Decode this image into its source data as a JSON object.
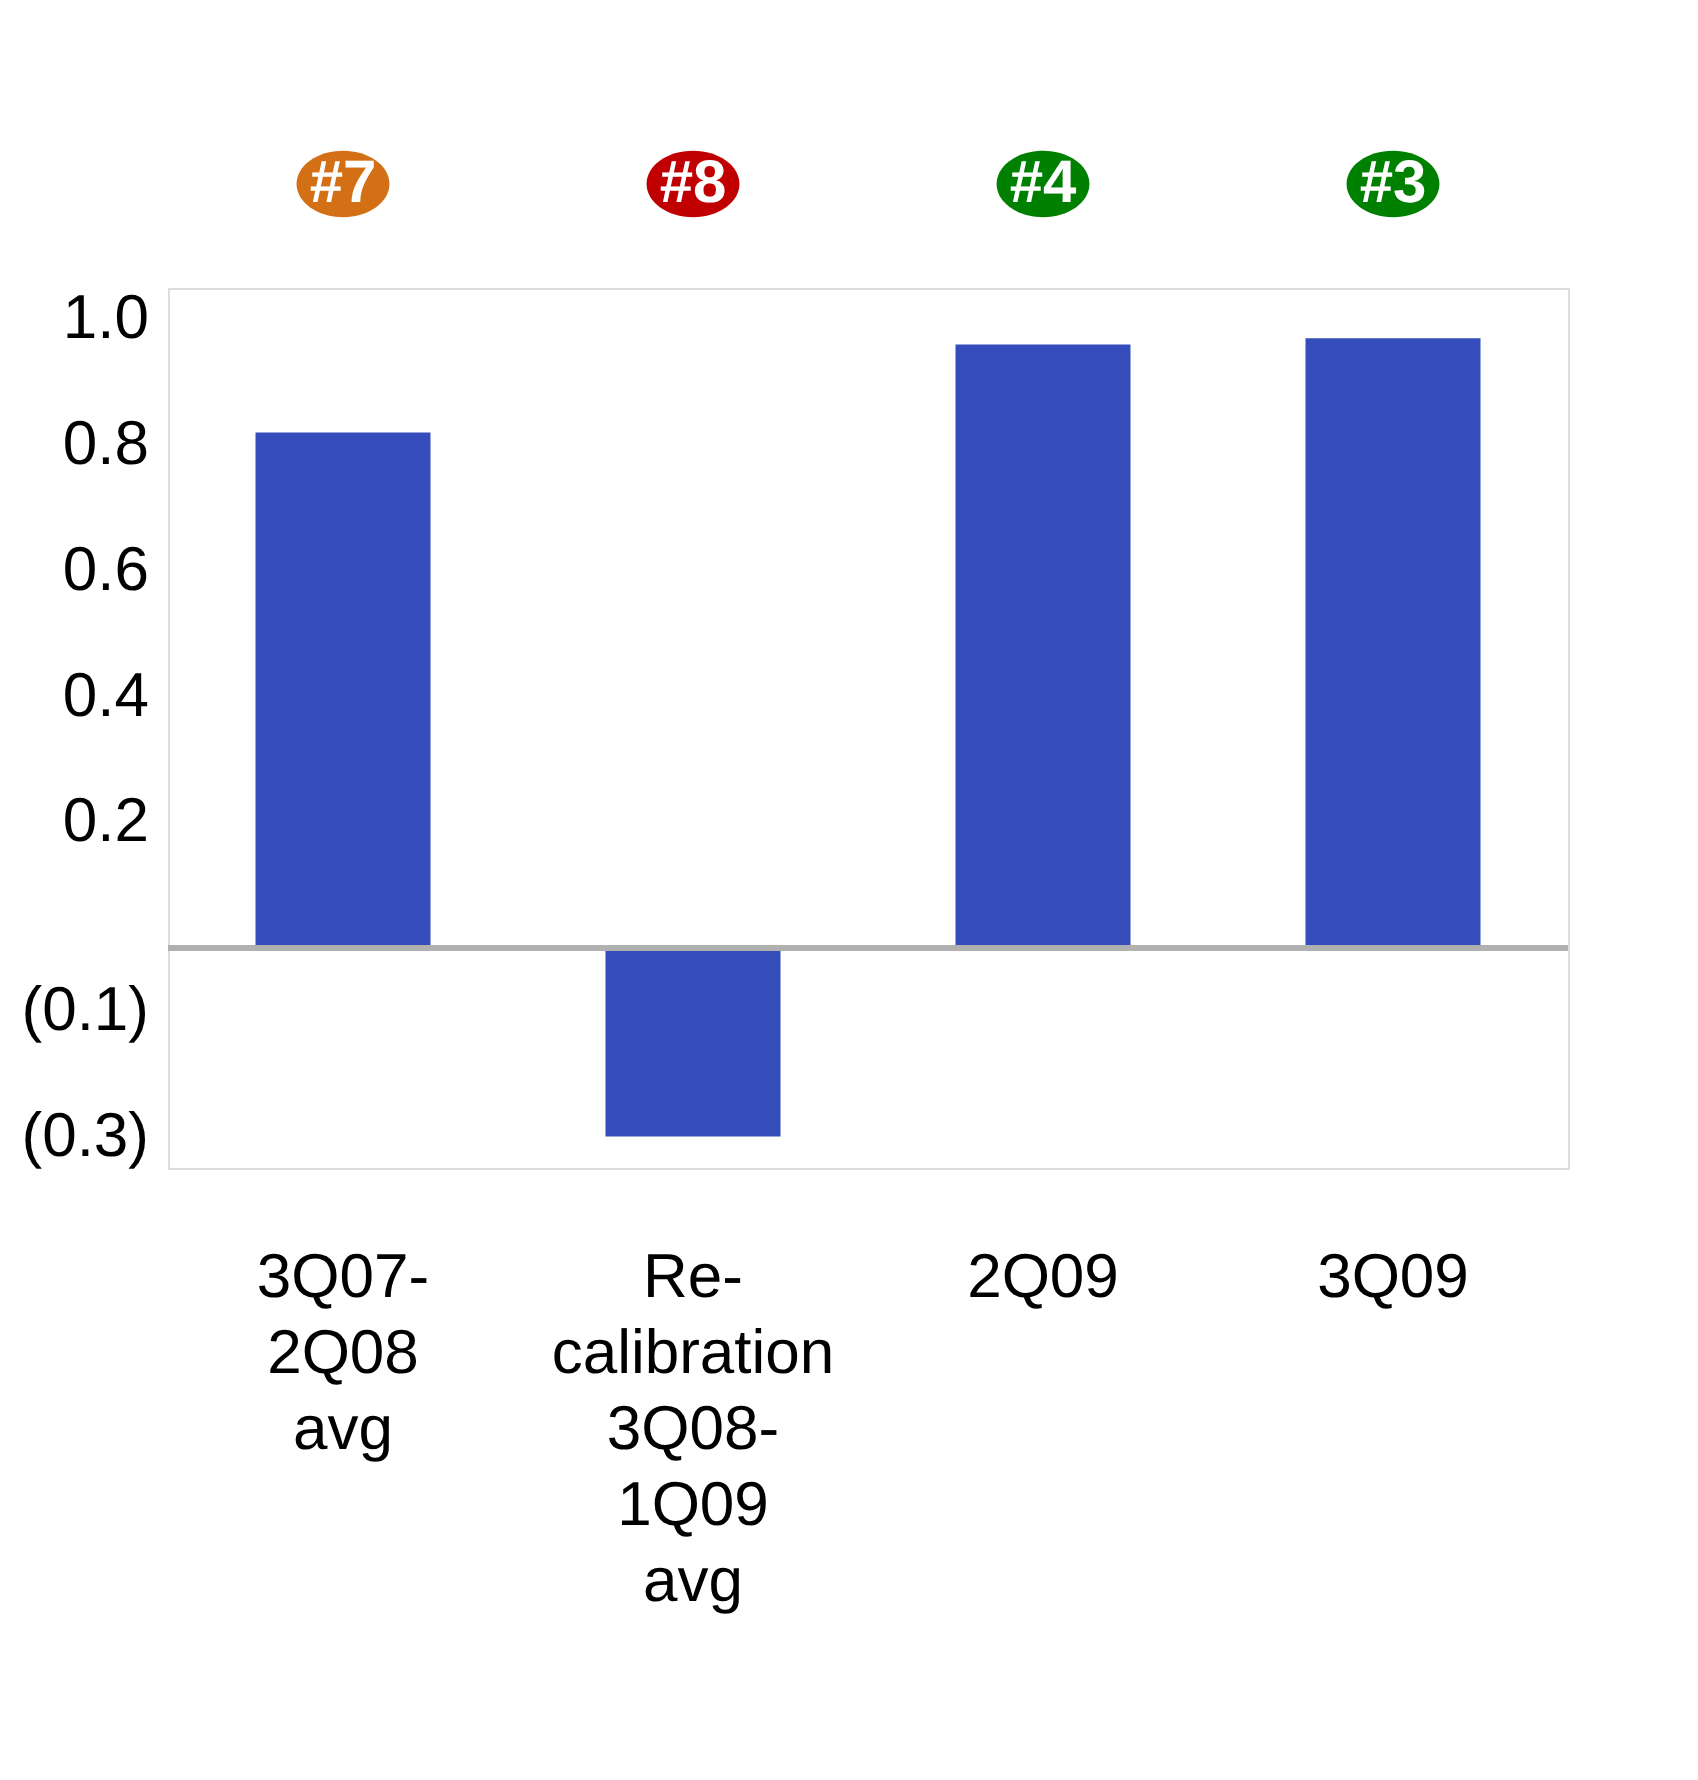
{
  "chart_data": {
    "type": "bar",
    "categories": [
      "3Q07-2Q08 avg",
      "Re-calibration 3Q08-1Q09 avg",
      "2Q09",
      "3Q09"
    ],
    "values": [
      0.82,
      -0.3,
      0.96,
      0.97
    ],
    "color": "#344dba",
    "ylim": [
      -0.35,
      1.05
    ],
    "yticks": [
      {
        "value": -0.3,
        "label": "(0.3)"
      },
      {
        "value": -0.1,
        "label": "(0.1)"
      },
      0.2,
      0.4,
      0.6,
      0.8,
      {
        "value": 1.0,
        "label": "1.0"
      }
    ],
    "grid": false,
    "annotations": [
      "#7",
      "#8",
      "#4",
      "#3"
    ]
  }
}
